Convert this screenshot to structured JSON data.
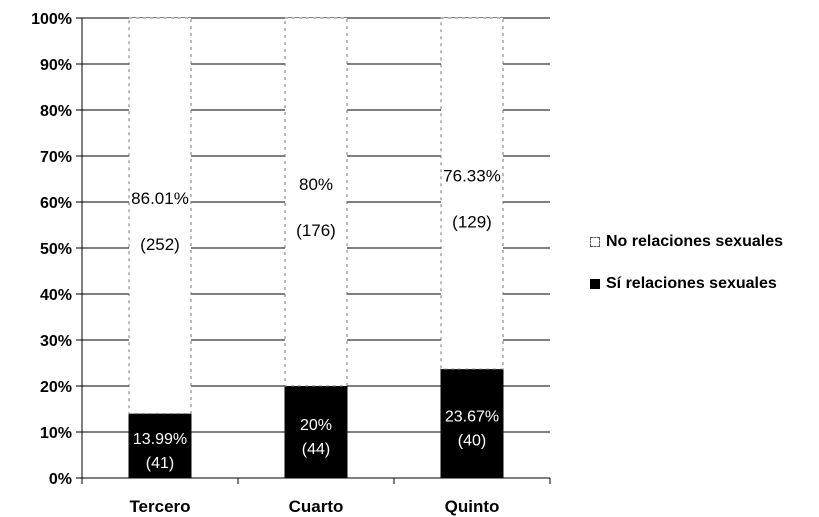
{
  "chart_data": {
    "type": "bar",
    "stacked": true,
    "percent": true,
    "categories": [
      "Tercero",
      "Cuarto",
      "Quinto"
    ],
    "series": [
      {
        "name": "Sí relaciones sexuales",
        "values": [
          13.99,
          20,
          23.67
        ],
        "labels": [
          "13.99%",
          "20%",
          "23.67%"
        ],
        "counts": [
          "(41)",
          "(44)",
          "(40)"
        ],
        "color": "#000000"
      },
      {
        "name": "No relaciones sexuales",
        "values": [
          86.01,
          80,
          76.33
        ],
        "labels": [
          "86.01%",
          "80%",
          "76.33%"
        ],
        "counts": [
          "(252)",
          "(176)",
          "(129)"
        ],
        "color": "#ffffff"
      }
    ],
    "yticks": [
      "0%",
      "10%",
      "20%",
      "30%",
      "40%",
      "50%",
      "60%",
      "70%",
      "80%",
      "90%",
      "100%"
    ],
    "ylim": [
      0,
      100
    ],
    "grid": true,
    "legend_position": "right"
  }
}
